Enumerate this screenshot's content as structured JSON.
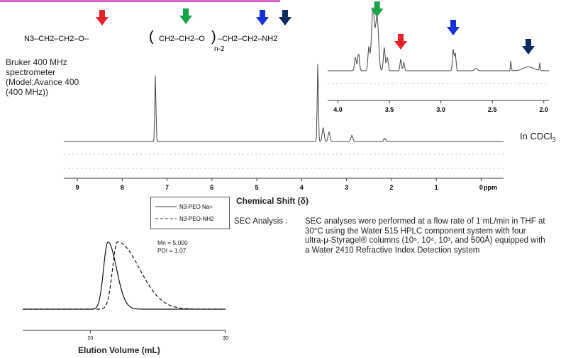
{
  "molecule": {
    "parts": [
      "N",
      "3",
      "–CH",
      "2",
      "–CH",
      "2",
      "–O–",
      "(",
      "–CH",
      "2",
      "–CH",
      "2",
      "–O–",
      ")",
      "–CH",
      "2",
      "–CH",
      "2",
      "–NH",
      "2"
    ],
    "text_left": "N3–CH2–CH2–O–",
    "text_repeat": "CH2–CH2–O",
    "text_right": "–CH2–CH2–NH2",
    "subscript_n": "n-2",
    "arrow_colors": {
      "red": "#e8202a",
      "green": "#1aa34a",
      "blue": "#1530d8",
      "navy": "#0b2a5e"
    }
  },
  "instrument_text": "Bruker 400 MHz\nspectrometer\n(Model;Avance 400\n(400 MHz))",
  "solvent_label": "In CDCl",
  "solvent_sub": "3",
  "chemical_shift_label": "Chemical Shift (δ)",
  "legend": {
    "items": [
      {
        "label": "N3-PEO Na+",
        "style": "solid"
      },
      {
        "label": "N3-PEO-NH2",
        "style": "dashed"
      }
    ]
  },
  "sec": {
    "label": "SEC Analysis :",
    "text": "SEC analyses were performed at a flow rate of 1 mL/min in THF at 30°C using the Water 515 HPLC component system with four ultra-μ-Styragel® columns (10⁵, 10⁴, 10³, and 500Å) equipped with a Water 2410 Refractive Index Detection system",
    "mn": "Mn = 5,000",
    "pdi": "PDI = 1.07",
    "xlabel": "Elution Volume (mL)"
  },
  "chart_data": [
    {
      "type": "line",
      "xlabel": "ppm",
      "x_ticks": [
        "9",
        "8",
        "7",
        "6",
        "5",
        "4",
        "3",
        "2",
        "1",
        "0"
      ],
      "xlim": [
        9.3,
        -0.5
      ],
      "peaks_ppm": [
        {
          "x": 7.26,
          "height": 0.85
        },
        {
          "x": 3.64,
          "height": 1.0
        },
        {
          "x": 3.52,
          "height": 0.18
        },
        {
          "x": 3.39,
          "height": 0.12
        },
        {
          "x": 2.88,
          "height": 0.08
        },
        {
          "x": 2.15,
          "height": 0.04
        }
      ]
    },
    {
      "type": "line",
      "xlabel": "",
      "x_ticks": [
        "4.0",
        "3.5",
        "3.0",
        "2.5",
        "2.0"
      ],
      "xlim": [
        4.1,
        1.95
      ],
      "arrows": [
        {
          "x": 3.62,
          "color": "green"
        },
        {
          "x": 3.39,
          "color": "red"
        },
        {
          "x": 2.88,
          "color": "blue"
        },
        {
          "x": 2.15,
          "color": "navy"
        }
      ]
    },
    {
      "type": "line",
      "xlabel": "Elution Volume (mL)",
      "x_ticks": [
        "20",
        "30"
      ],
      "xlim": [
        15,
        30
      ],
      "series": [
        {
          "name": "N3-PEO Na+",
          "style": "solid",
          "peak_x": 21.3,
          "width_left": 0.45,
          "width_right": 0.9
        },
        {
          "name": "N3-PEO-NH2",
          "style": "dashed",
          "peak_x": 22.0,
          "width_left": 0.5,
          "width_right": 2.3
        }
      ]
    }
  ]
}
